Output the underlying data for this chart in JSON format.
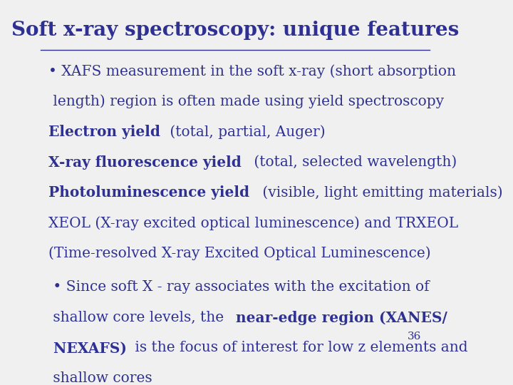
{
  "title": "Soft x-ray spectroscopy: unique features",
  "title_color": "#2E3191",
  "title_fontsize": 20,
  "background_color": "#F0F0F0",
  "text_color": "#2E3191",
  "body_fontsize": 14.5,
  "page_number": "36",
  "bullet1_lines": [
    {
      "text": "• XAFS measurement in the soft x-ray (short absorption",
      "segments": [
        {
          "t": "• XAFS measurement in the soft x-ray (short absorption",
          "b": false
        }
      ]
    },
    {
      "text": " length) region is often made using yield spectroscopy",
      "segments": [
        {
          "t": " length) region is often made using yield spectroscopy",
          "b": false
        }
      ]
    },
    {
      "text": "Electron yield (total, partial, Auger)",
      "segments": [
        {
          "t": "Electron yield",
          "b": true
        },
        {
          "t": " (total, partial, Auger)",
          "b": false
        }
      ]
    },
    {
      "text": "X-ray fluorescence yield (total, selected wavelength)",
      "segments": [
        {
          "t": "X-ray fluorescence yield",
          "b": true
        },
        {
          "t": " (total, selected wavelength)",
          "b": false
        }
      ]
    },
    {
      "text": "Photoluminescence yield (visible, light emitting materials)",
      "segments": [
        {
          "t": "Photoluminescence yield",
          "b": true
        },
        {
          "t": " (visible, light emitting materials)",
          "b": false
        }
      ]
    },
    {
      "text": "XEOL (X-ray excited optical luminescence) and TRXEOL",
      "segments": [
        {
          "t": "XEOL (X-ray excited optical luminescence) and TRXEOL",
          "b": false
        }
      ]
    },
    {
      "text": "(Time-resolved X-ray Excited Optical Luminescence)",
      "segments": [
        {
          "t": "(Time-resolved X-ray Excited Optical Luminescence)",
          "b": false
        }
      ]
    }
  ],
  "bullet2_lines": [
    {
      "text": " • Since soft X - ray associates with the excitation of",
      "segments": [
        {
          "t": " • Since soft X - ray associates with the excitation of",
          "b": false
        }
      ]
    },
    {
      "text": " shallow core levels, the near-edge region (XANES/",
      "segments": [
        {
          "t": " shallow core levels, the ",
          "b": false
        },
        {
          "t": "near-edge region (XANES/",
          "b": true
        }
      ]
    },
    {
      "text": " NEXAFS) is the focus of interest for low z elements and",
      "segments": [
        {
          "t": " NEXAFS)",
          "b": true
        },
        {
          "t": " is the focus of interest for low z elements and",
          "b": false
        }
      ]
    },
    {
      "text": " shallow cores",
      "segments": [
        {
          "t": " shallow cores",
          "b": false
        }
      ]
    }
  ]
}
